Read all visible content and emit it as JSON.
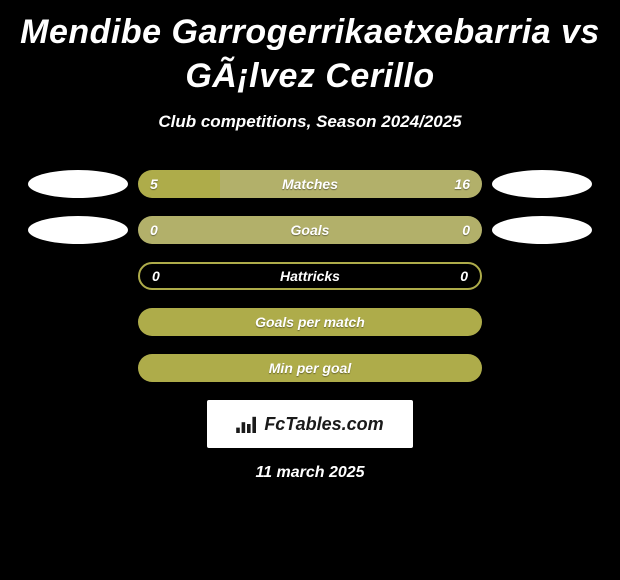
{
  "title": "Mendibe Garrogerrikaetxebarria vs GÃ¡lvez Cerillo",
  "subtitle": "Club competitions, Season 2024/2025",
  "date": "11 march 2025",
  "logo_text": "FcTables.com",
  "colors": {
    "background": "#000000",
    "text": "#ffffff",
    "bar_primary": "#aeac4a",
    "bar_secondary": "#b2b06a",
    "pill": "#ffffff"
  },
  "rows": [
    {
      "label": "Matches",
      "left": "5",
      "right": "16",
      "left_pct": 23.8,
      "right_pct": 76.2,
      "show_pills": true,
      "mode": "split"
    },
    {
      "label": "Goals",
      "left": "0",
      "right": "0",
      "left_pct": 50,
      "right_pct": 50,
      "show_pills": true,
      "mode": "split_even"
    },
    {
      "label": "Hattricks",
      "left": "0",
      "right": "0",
      "left_pct": 0,
      "right_pct": 0,
      "show_pills": false,
      "mode": "outline"
    },
    {
      "label": "Goals per match",
      "left": "",
      "right": "",
      "left_pct": 100,
      "right_pct": 0,
      "show_pills": false,
      "mode": "full"
    },
    {
      "label": "Min per goal",
      "left": "",
      "right": "",
      "left_pct": 100,
      "right_pct": 0,
      "show_pills": false,
      "mode": "full"
    }
  ]
}
